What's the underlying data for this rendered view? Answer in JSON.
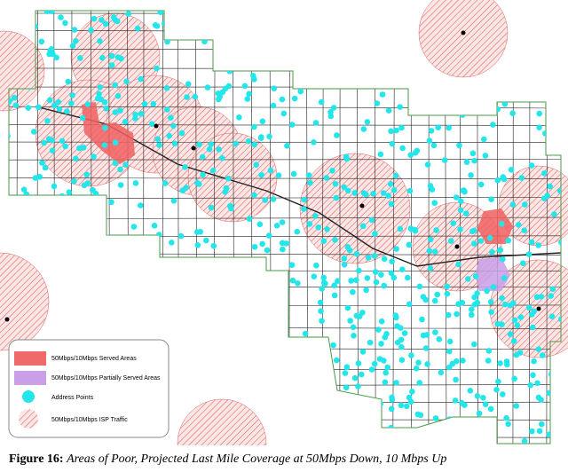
{
  "legend": {
    "items": [
      "50Mbps/10Mbps Served Areas",
      "50Mbps/10Mbps Partially Served Areas",
      "Address Points",
      "50Mbps/10Mbps ISP Traffic"
    ]
  },
  "caption": {
    "label": "Figure 16:",
    "text": "Areas of Poor, Projected Last Mile Coverage at 50Mbps Down, 10 Mbps Up"
  }
}
